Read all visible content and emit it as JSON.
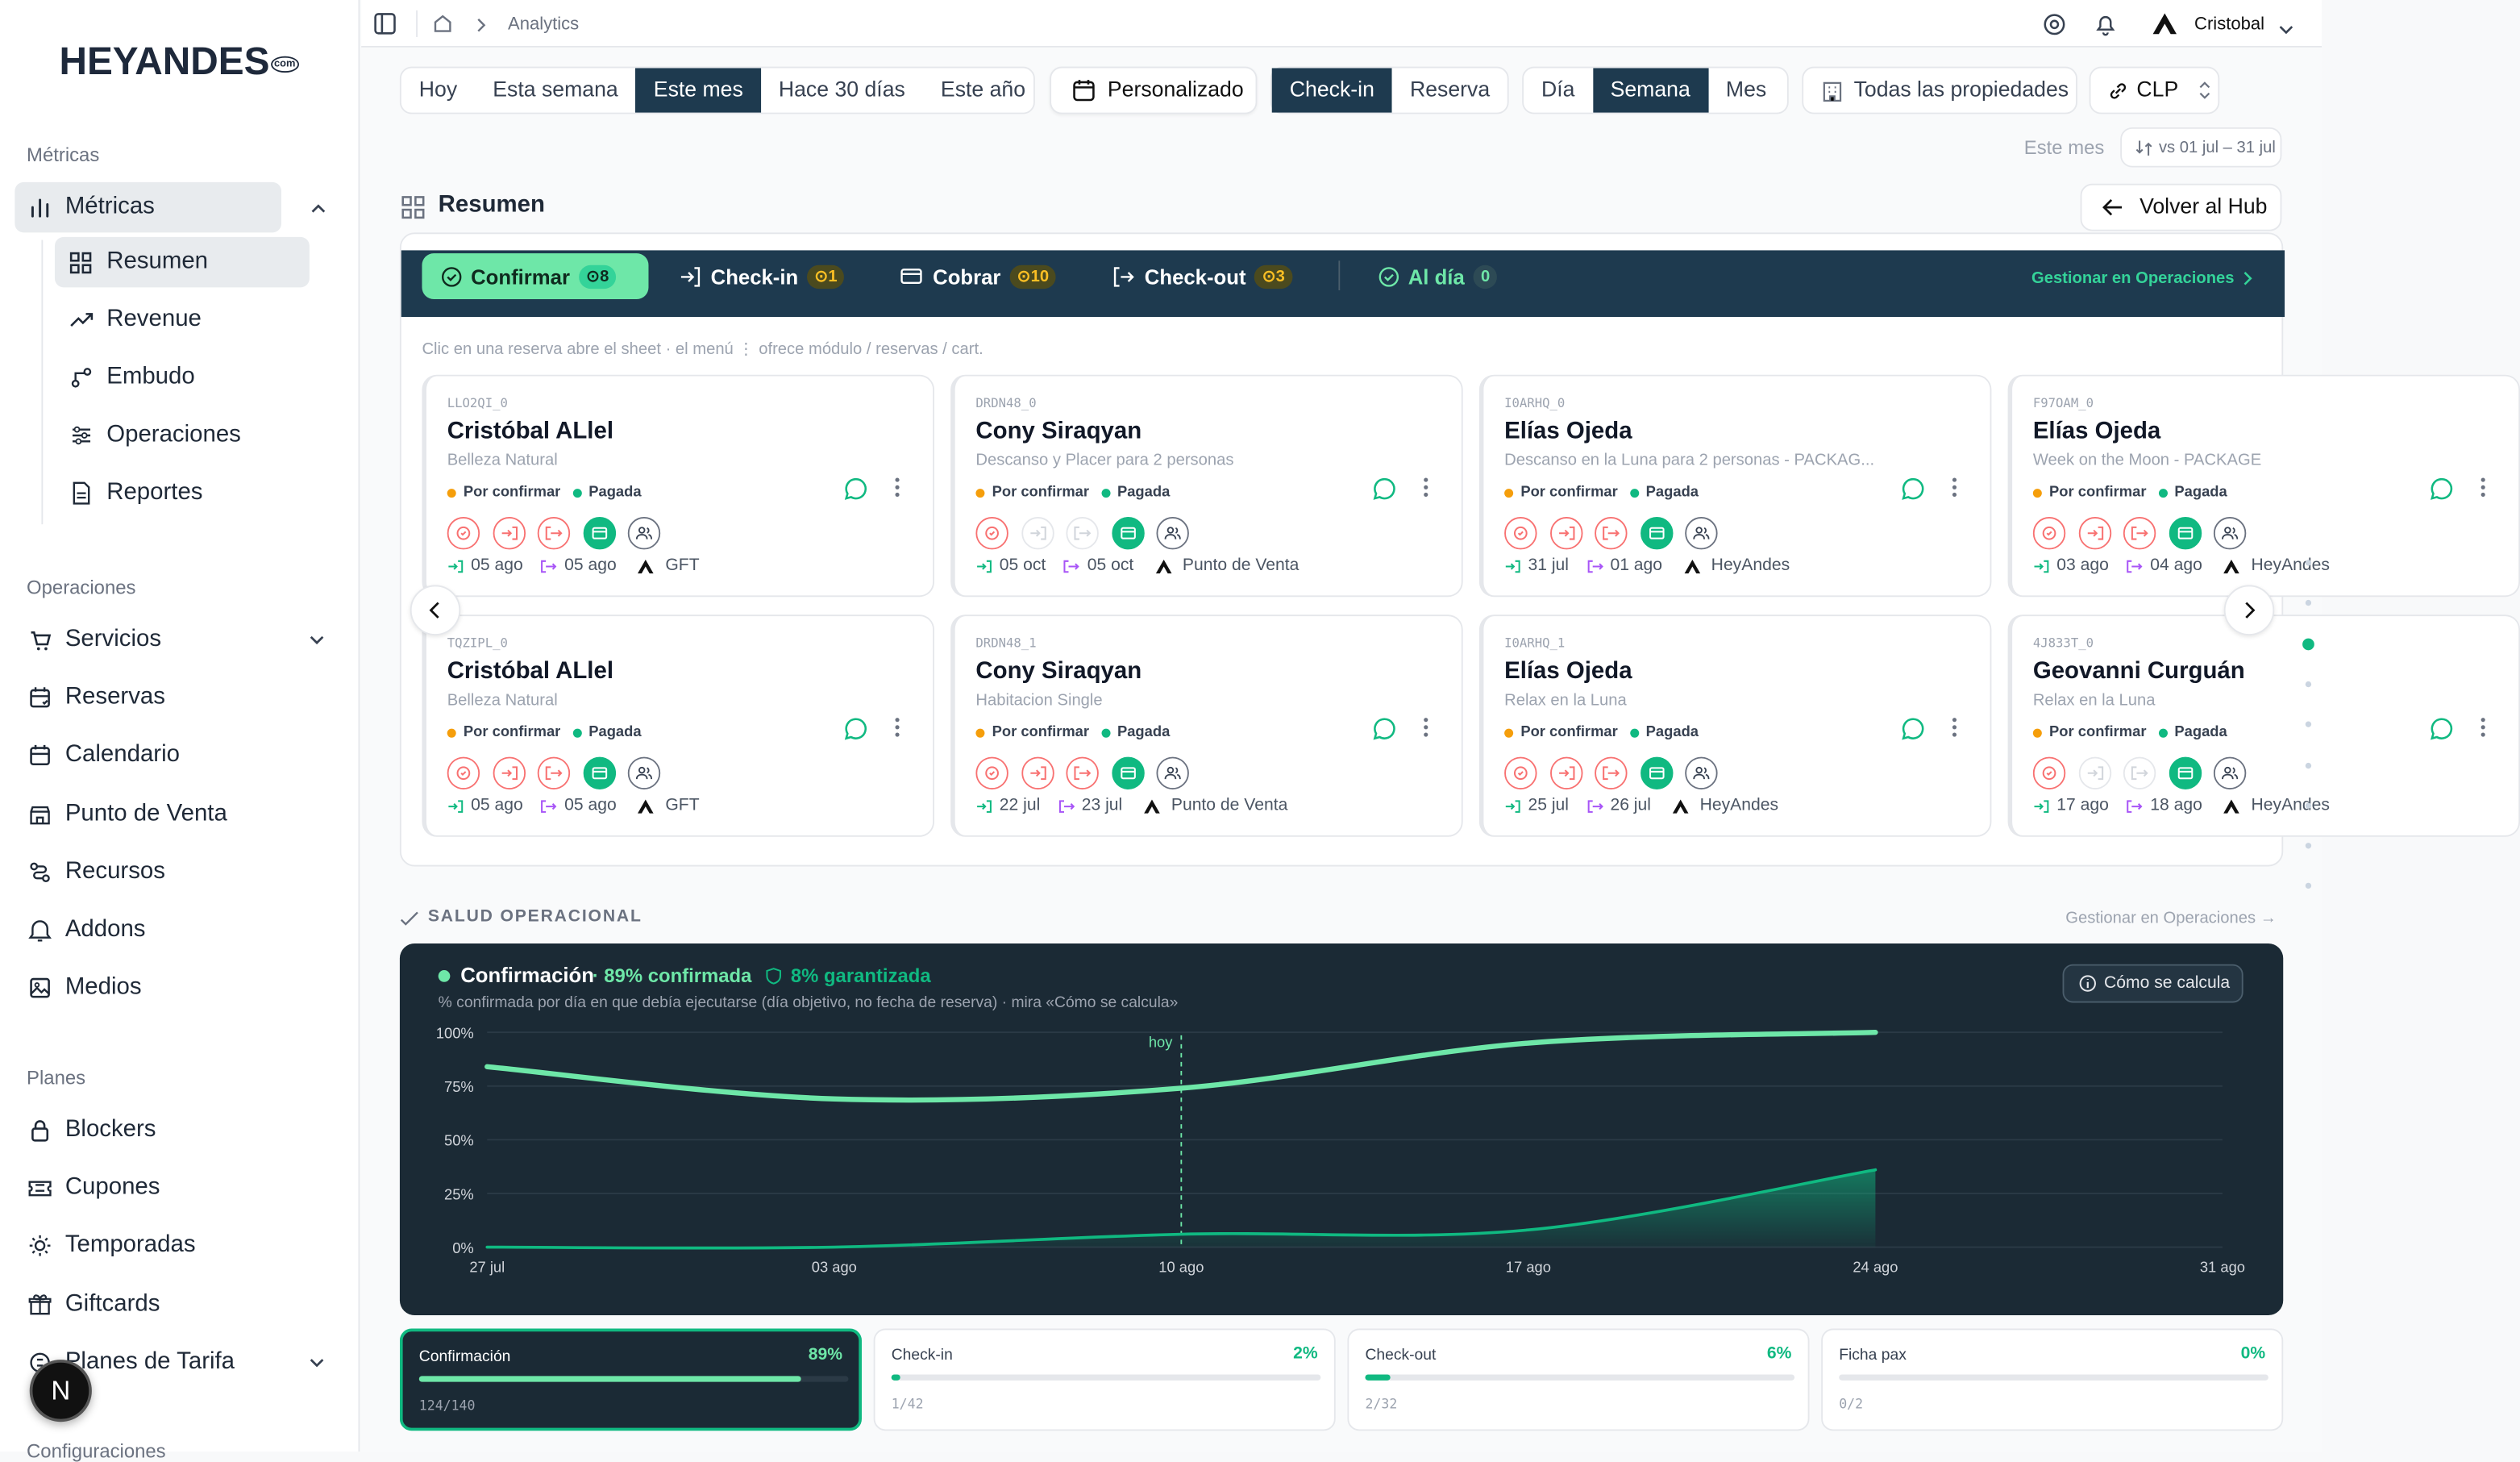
{
  "sidebar": {
    "logo": "HEYANDES",
    "logo_mark": "com",
    "sections": [
      "Métricas",
      "Operaciones",
      "Planes",
      "Configuraciones"
    ],
    "metricas_item": "Métricas",
    "sub_items": [
      "Resumen",
      "Revenue",
      "Embudo",
      "Operaciones",
      "Reportes"
    ],
    "ops_items": [
      "Servicios",
      "Reservas",
      "Calendario",
      "Punto de Venta",
      "Recursos",
      "Addons",
      "Medios"
    ],
    "plan_items": [
      "Blockers",
      "Cupones",
      "Temporadas",
      "Giftcards",
      "Planes de Tarifa"
    ],
    "avatar_letter": "N"
  },
  "topbar": {
    "breadcrumb": "Analytics",
    "user": "Cristobal"
  },
  "filters": {
    "range": [
      "Hoy",
      "Esta semana",
      "Este mes",
      "Hace 30 días",
      "Este año"
    ],
    "range_selected": "Este mes",
    "custom": "Personalizado",
    "mode": [
      "Check-in",
      "Reserva"
    ],
    "mode_selected": "Check-in",
    "granularity": [
      "Día",
      "Semana",
      "Mes"
    ],
    "granularity_selected": "Semana",
    "properties": "Todas las propiedades",
    "currency": "CLP",
    "period_label": "Este mes",
    "compare": "vs 01 jul – 31 jul"
  },
  "page": {
    "title": "Resumen",
    "back": "Volver al Hub"
  },
  "ops": {
    "tabs": [
      {
        "label": "Confirmar",
        "count": "8"
      },
      {
        "label": "Check-in",
        "count": "1"
      },
      {
        "label": "Cobrar",
        "count": "10"
      },
      {
        "label": "Check-out",
        "count": "3"
      },
      {
        "label": "Al día",
        "count": "0"
      }
    ],
    "manage": "Gestionar en Operaciones",
    "hint": "Clic en una reserva abre el sheet · el menú ⋮ ofrece módulo / reservas / cart.",
    "status_pending": "Por confirmar",
    "status_paid": "Pagada",
    "cards": [
      {
        "code": "LLO2QI_0",
        "name": "Cristóbal ALlel",
        "desc": "Belleza Natural",
        "in": "05 ago",
        "out": "05 ago",
        "channel": "GFT",
        "pattern": "full"
      },
      {
        "code": "DRDN48_0",
        "name": "Cony Siraqyan",
        "desc": "Descanso y Placer para 2 personas",
        "in": "05 oct",
        "out": "05 oct",
        "channel": "Punto de Venta",
        "pattern": "grey"
      },
      {
        "code": "I0ARHQ_0",
        "name": "Elías Ojeda",
        "desc": "Descanso en la Luna para 2 personas - PACKAG...",
        "in": "31 jul",
        "out": "01 ago",
        "channel": "HeyAndes",
        "pattern": "full"
      },
      {
        "code": "F97OAM_0",
        "name": "Elías Ojeda",
        "desc": "Week on the Moon - PACKAGE",
        "in": "03 ago",
        "out": "04 ago",
        "channel": "HeyAndes",
        "pattern": "full"
      },
      {
        "code": "TQZIPL_0",
        "name": "Cristóbal ALlel",
        "desc": "Belleza Natural",
        "in": "05 ago",
        "out": "05 ago",
        "channel": "GFT",
        "pattern": "full"
      },
      {
        "code": "DRDN48_1",
        "name": "Cony Siraqyan",
        "desc": "Habitacion Single",
        "in": "22 jul",
        "out": "23 jul",
        "channel": "Punto de Venta",
        "pattern": "full"
      },
      {
        "code": "I0ARHQ_1",
        "name": "Elías Ojeda",
        "desc": "Relax en la Luna",
        "in": "25 jul",
        "out": "26 jul",
        "channel": "HeyAndes",
        "pattern": "full"
      },
      {
        "code": "4J833T_0",
        "name": "Geovanni Curguán",
        "desc": "Relax en la Luna",
        "in": "17 ago",
        "out": "18 ago",
        "channel": "HeyAndes",
        "pattern": "grey"
      }
    ]
  },
  "health": {
    "title": "SALUD OPERACIONAL",
    "manage": "Gestionar en Operaciones →",
    "chart_title": "Confirmación",
    "confirmed": "· 89% confirmada",
    "guaranteed": "8% garantizada",
    "subtitle": "% confirmada por día en que debía ejecutarse (día objetivo, no fecha de reserva) · mira «Cómo se calcula»",
    "how": "Cómo se calcula",
    "today": "hoy"
  },
  "chart_data": {
    "type": "line",
    "x": [
      "27 jul",
      "03 ago",
      "10 ago",
      "17 ago",
      "24 ago",
      "31 ago"
    ],
    "ylim": [
      0,
      100
    ],
    "yticks": [
      "100%",
      "75%",
      "50%",
      "25%",
      "0%"
    ],
    "today_index": 2,
    "series": [
      {
        "name": "Confirmación",
        "color": "#6ee7a8",
        "values": [
          84,
          69,
          74,
          95,
          100,
          null
        ]
      },
      {
        "name": "Garantizada",
        "color": "#10b981",
        "values": [
          0,
          0,
          6,
          8,
          36,
          null
        ]
      }
    ]
  },
  "kpis": [
    {
      "label": "Confirmación",
      "pct": "89%",
      "value": 0.89,
      "sub": "124/140",
      "active": true
    },
    {
      "label": "Check-in",
      "pct": "2%",
      "value": 0.02,
      "sub": "1/42",
      "active": false
    },
    {
      "label": "Check-out",
      "pct": "6%",
      "value": 0.06,
      "sub": "2/32",
      "active": false
    },
    {
      "label": "Ficha pax",
      "pct": "0%",
      "value": 0.0,
      "sub": "0/2",
      "active": false
    }
  ],
  "colors": {
    "navy": "#1e3a4f",
    "green": "#10b981",
    "mint": "#6ee7a8",
    "dark": "#1b2a35"
  }
}
